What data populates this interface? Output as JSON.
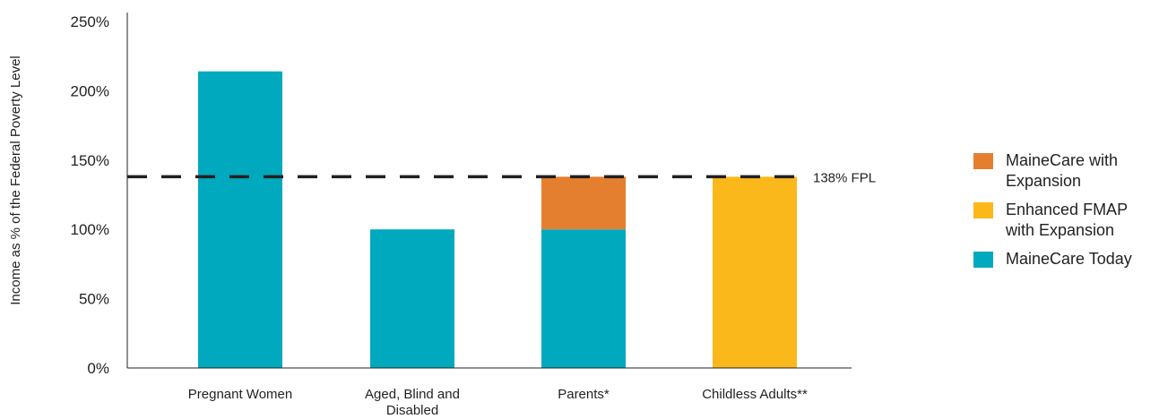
{
  "chart_data": {
    "type": "bar",
    "stacked": true,
    "categories": [
      "Pregnant Women",
      "Aged, Blind and Disabled",
      "Parents*",
      "Childless Adults**"
    ],
    "category_lines": [
      [
        "Pregnant Women"
      ],
      [
        "Aged, Blind and",
        "Disabled"
      ],
      [
        "Parents*"
      ],
      [
        "Childless Adults**"
      ]
    ],
    "series": [
      {
        "name": "MaineCare Today",
        "color": "#00a9bd",
        "values": [
          214,
          100,
          100,
          0
        ]
      },
      {
        "name": "MaineCare with Expansion",
        "color": "#e57f30",
        "values": [
          0,
          0,
          38,
          0
        ]
      },
      {
        "name": "Enhanced FMAP with Expansion",
        "color": "#fbb81a",
        "values": [
          0,
          0,
          0,
          138
        ]
      }
    ],
    "ylabel": "Income as % of the Federal Poverty Level",
    "ylim": [
      0,
      250
    ],
    "yticks": [
      0,
      50,
      100,
      150,
      200,
      250
    ],
    "ytick_suffix": "%",
    "reference_line": {
      "value": 138,
      "label": "138% FPL",
      "style": "dashed"
    },
    "legend": {
      "position": "right",
      "items": [
        {
          "name": "MaineCare with Expansion",
          "color": "#e57f30"
        },
        {
          "name": "Enhanced FMAP with Expansion",
          "color": "#fbb81a"
        },
        {
          "name": "MaineCare Today",
          "color": "#00a9bd"
        }
      ]
    }
  }
}
